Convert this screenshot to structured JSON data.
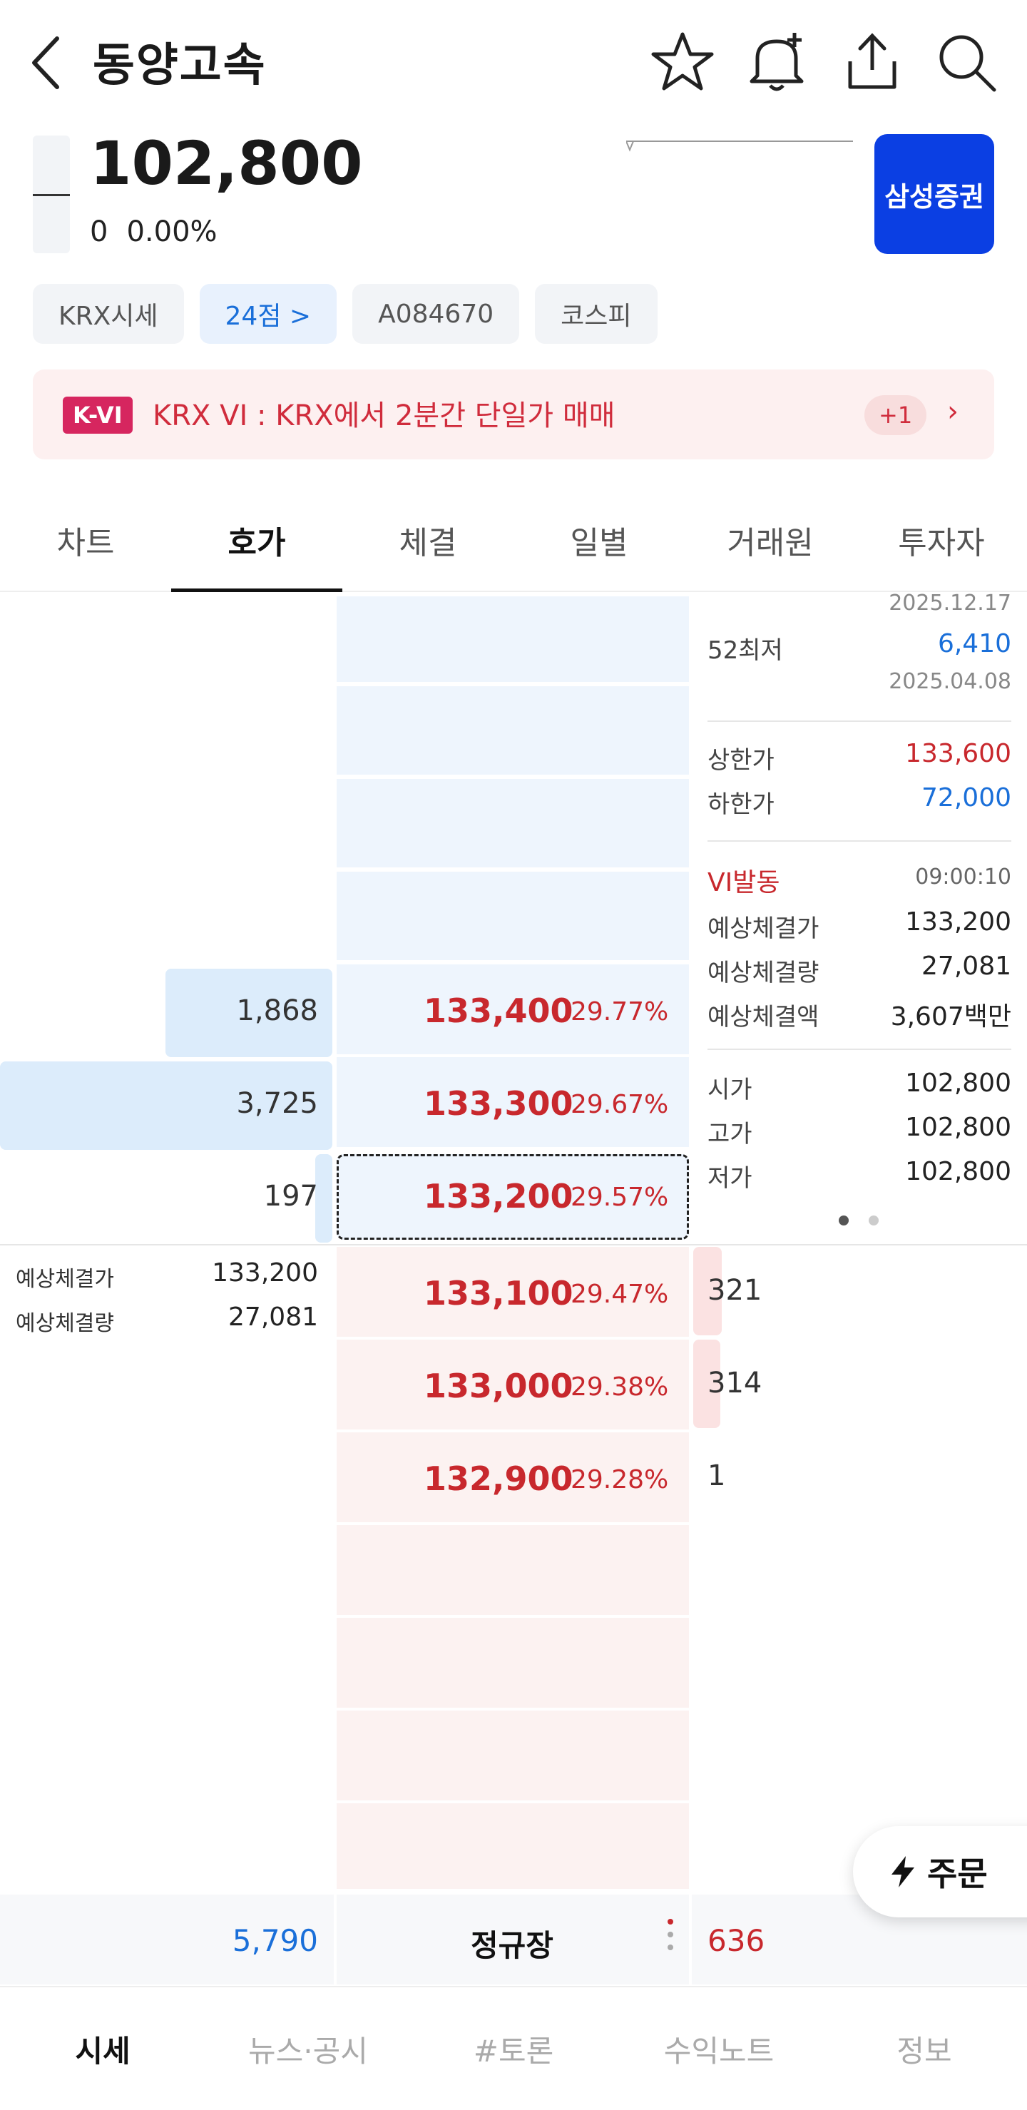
{
  "header": {
    "title": "동양고속"
  },
  "quote": {
    "price": "102,800",
    "change": "0",
    "change_pct": "0.00%"
  },
  "broker": {
    "label": "삼성증권"
  },
  "chips": [
    {
      "label": "KRX시세"
    },
    {
      "label": "24점 >"
    },
    {
      "label": "A084670"
    },
    {
      "label": "코스피"
    }
  ],
  "vi_banner": {
    "badge": "K-VI",
    "message": "KRX VI : KRX에서 2분간 단일가 매매",
    "count": "+1"
  },
  "tabs": [
    "차트",
    "호가",
    "체결",
    "일별",
    "거래원",
    "투자자"
  ],
  "asks": [
    {
      "volume": "1,868",
      "price": "133,400",
      "pct": "29.77%"
    },
    {
      "volume": "3,725",
      "price": "133,300",
      "pct": "29.67%"
    },
    {
      "volume": "197",
      "price": "133,200",
      "pct": "29.57%"
    }
  ],
  "bids": [
    {
      "volume": "321",
      "price": "133,100",
      "pct": "29.47%"
    },
    {
      "volume": "314",
      "price": "133,000",
      "pct": "29.38%"
    },
    {
      "volume": "1",
      "price": "132,900",
      "pct": "29.28%"
    }
  ],
  "expected": {
    "price_label": "예상체결가",
    "price": "133,200",
    "volume_label": "예상체결량",
    "volume": "27,081"
  },
  "right_panel": {
    "high52_date": "2025.12.17",
    "low52_label": "52최저",
    "low52": "6,410",
    "low52_date": "2025.04.08",
    "upper_label": "상한가",
    "upper": "133,600",
    "lower_label": "하한가",
    "lower": "72,000",
    "vi_label": "VI발동",
    "vi_time": "09:00:10",
    "exp_price_label": "예상체결가",
    "exp_price": "133,200",
    "exp_vol_label": "예상체결량",
    "exp_vol": "27,081",
    "exp_amt_label": "예상체결액",
    "exp_amt": "3,607백만",
    "open_label": "시가",
    "open": "102,800",
    "high_label": "고가",
    "high": "102,800",
    "low_label": "저가",
    "low": "102,800"
  },
  "totals": {
    "ask_total": "5,790",
    "session": "정규장",
    "bid_total": "636"
  },
  "order_button": {
    "label": "주문"
  },
  "bottom_nav": [
    "시세",
    "뉴스·공시",
    "#토론",
    "수익노트",
    "정보"
  ],
  "colors": {
    "up": "#c8282d",
    "down": "#1a6fd9",
    "broker": "#0b3fe3",
    "vi_badge": "#d6265f"
  }
}
